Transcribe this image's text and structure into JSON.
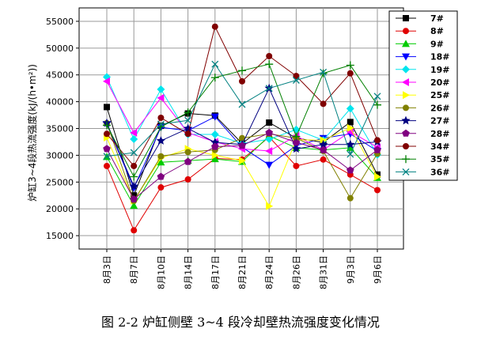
{
  "chart_data": {
    "type": "line",
    "title": "",
    "xlabel": "",
    "ylabel": "炉缸3~4段热流强度(kJ/(h•m²))",
    "ylim": [
      12500,
      57500
    ],
    "yticks": [
      15000,
      20000,
      25000,
      30000,
      35000,
      40000,
      45000,
      50000,
      55000
    ],
    "categories": [
      "8月3日",
      "8月7日",
      "8月10日",
      "8月14日",
      "8月17日",
      "8月21日",
      "8月24日",
      "8月26日",
      "8月31日",
      "9月3日",
      "9月6日"
    ],
    "legend_position": "top-right",
    "series": [
      {
        "name": "7#",
        "color": "#000000",
        "marker": "square",
        "values": [
          39000,
          22500,
          35500,
          37800,
          37400,
          32200,
          36100,
          33200,
          32400,
          36200,
          26400
        ]
      },
      {
        "name": "8#",
        "color": "#e00000",
        "marker": "circle",
        "values": [
          28000,
          16000,
          24000,
          25500,
          29400,
          29200,
          33400,
          28000,
          29200,
          26400,
          23500
        ]
      },
      {
        "name": "9#",
        "color": "#00cc00",
        "marker": "triangle-up",
        "values": [
          29700,
          20600,
          28700,
          29000,
          29300,
          28800,
          33600,
          31400,
          31000,
          31400,
          25800
        ]
      },
      {
        "name": "18#",
        "color": "#0000ff",
        "marker": "triangle-down",
        "values": [
          35800,
          23900,
          35200,
          34600,
          37200,
          31500,
          28200,
          31800,
          33200,
          34000,
          30800
        ]
      },
      {
        "name": "19#",
        "color": "#00e5ee",
        "marker": "diamond",
        "values": [
          44600,
          33000,
          42300,
          33900,
          33900,
          32200,
          33000,
          34800,
          32800,
          38700,
          30100
        ]
      },
      {
        "name": "20#",
        "color": "#ff00ff",
        "marker": "triangle-left",
        "values": [
          43800,
          34200,
          40700,
          34200,
          32500,
          31200,
          30800,
          33600,
          31000,
          34400,
          31500
        ]
      },
      {
        "name": "25#",
        "color": "#ffff00",
        "marker": "triangle-right",
        "values": [
          33300,
          21500,
          29500,
          31200,
          30000,
          29000,
          20500,
          32900,
          32800,
          35100,
          26000
        ]
      },
      {
        "name": "26#",
        "color": "#808000",
        "marker": "circle",
        "values": [
          36000,
          21500,
          29800,
          30600,
          31000,
          33200,
          34000,
          33200,
          30800,
          22000,
          30300
        ]
      },
      {
        "name": "27#",
        "color": "#000080",
        "marker": "star",
        "values": [
          36000,
          24200,
          32700,
          35000,
          32400,
          32000,
          42500,
          31200,
          32000,
          32000,
          32500
        ]
      },
      {
        "name": "28#",
        "color": "#800080",
        "marker": "pentagon",
        "values": [
          31200,
          21800,
          26000,
          28800,
          31600,
          31800,
          34200,
          32400,
          31000,
          27200,
          31000
        ]
      },
      {
        "name": "34#",
        "color": "#800000",
        "marker": "circle",
        "values": [
          34000,
          28000,
          37000,
          34000,
          54000,
          43800,
          48500,
          44800,
          39600,
          45300,
          32800
        ]
      },
      {
        "name": "35#",
        "color": "#008000",
        "marker": "plus",
        "values": [
          35600,
          26000,
          35300,
          38000,
          44500,
          45800,
          47000,
          33500,
          45300,
          46800,
          39400
        ]
      },
      {
        "name": "36#",
        "color": "#008080",
        "marker": "cross",
        "values": [
          29800,
          30500,
          35800,
          36500,
          47000,
          39500,
          42500,
          44000,
          45500,
          30200,
          41000
        ]
      }
    ]
  },
  "caption": "图 2-2  炉缸侧壁 3~4 段冷却壁热流强度变化情况"
}
